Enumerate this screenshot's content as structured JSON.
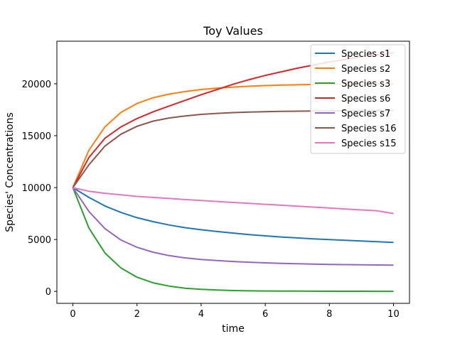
{
  "chart_data": {
    "type": "line",
    "title": "Toy Values",
    "xlabel": "time",
    "ylabel": "Species' Concentrations",
    "xlim": [
      -0.5,
      10.5
    ],
    "ylim": [
      -1150,
      24100
    ],
    "xticks": [
      0,
      2,
      4,
      6,
      8,
      10
    ],
    "yticks": [
      0,
      5000,
      10000,
      15000,
      20000
    ],
    "grid": false,
    "legend_position": "top-right",
    "x": [
      0,
      0.5,
      1,
      1.5,
      2,
      2.5,
      3,
      3.5,
      4,
      4.5,
      5,
      5.5,
      6,
      6.5,
      7,
      7.5,
      8,
      8.5,
      9,
      9.5,
      10
    ],
    "series": [
      {
        "name": "Species s1",
        "color": "#1f77b4",
        "values": [
          10000,
          9050,
          8230,
          7600,
          7100,
          6720,
          6400,
          6140,
          5940,
          5770,
          5620,
          5470,
          5350,
          5240,
          5150,
          5060,
          4990,
          4920,
          4850,
          4780,
          4720
        ]
      },
      {
        "name": "Species s2",
        "color": "#ff7f0e",
        "values": [
          10000,
          13600,
          15850,
          17250,
          18100,
          18650,
          19000,
          19250,
          19450,
          19580,
          19680,
          19760,
          19820,
          19870,
          19900,
          19930,
          19950,
          19970,
          19980,
          19990,
          20000
        ]
      },
      {
        "name": "Species s3",
        "color": "#2ca02c",
        "values": [
          10000,
          6100,
          3700,
          2250,
          1370,
          830,
          510,
          310,
          200,
          130,
          80,
          55,
          40,
          30,
          25,
          20,
          15,
          12,
          10,
          8,
          7
        ]
      },
      {
        "name": "Species s6",
        "color": "#d62728",
        "values": [
          10000,
          12900,
          14750,
          15850,
          16650,
          17300,
          17850,
          18400,
          18950,
          19450,
          19950,
          20400,
          20800,
          21150,
          21500,
          21800,
          22100,
          22350,
          22600,
          22800,
          23000
        ]
      },
      {
        "name": "Species s7",
        "color": "#9467bd",
        "values": [
          10000,
          7700,
          6050,
          4950,
          4250,
          3780,
          3450,
          3230,
          3080,
          2970,
          2880,
          2810,
          2750,
          2700,
          2660,
          2630,
          2600,
          2580,
          2560,
          2545,
          2530
        ]
      },
      {
        "name": "Species s16",
        "color": "#8c564b",
        "values": [
          10000,
          12200,
          14000,
          15150,
          15900,
          16400,
          16700,
          16900,
          17050,
          17150,
          17220,
          17270,
          17310,
          17340,
          17360,
          17380,
          17390,
          17400,
          17410,
          17420,
          17430
        ]
      },
      {
        "name": "Species s15",
        "color": "#e377c2",
        "values": [
          10000,
          9650,
          9450,
          9300,
          9150,
          9050,
          8950,
          8850,
          8750,
          8660,
          8570,
          8480,
          8390,
          8300,
          8210,
          8120,
          8030,
          7940,
          7850,
          7760,
          7500
        ]
      }
    ]
  }
}
